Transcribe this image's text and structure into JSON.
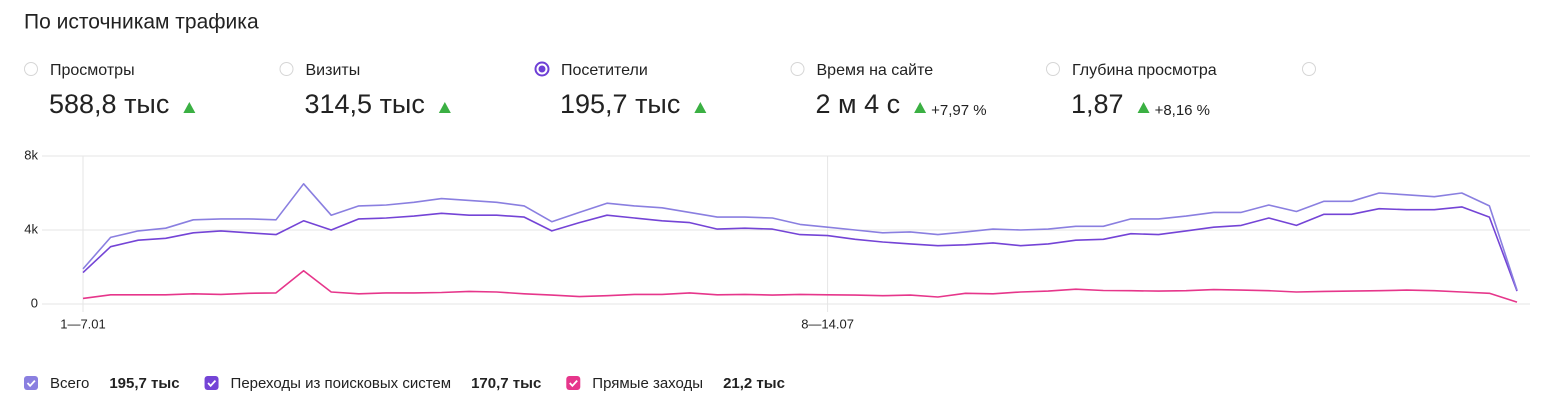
{
  "header": {
    "title": "По источникам трафика"
  },
  "metrics": [
    {
      "label": "Просмотры",
      "value": "588,8 тыс"
    },
    {
      "label": "Визиты",
      "value": "314,5 тыс"
    },
    {
      "label": "Посетители",
      "value": "195,7 тыс"
    },
    {
      "label": "Время на сайте",
      "value": "2 м 4 с",
      "change": "+7,97 %"
    },
    {
      "label": "Глубина просмотра",
      "value": "1,87",
      "change": "+8,16 %"
    }
  ],
  "selected_metric": 2,
  "chart_data": {
    "type": "line",
    "categories": [
      "1—7.01",
      null,
      null,
      null,
      null,
      null,
      null,
      null,
      null,
      null,
      null,
      null,
      null,
      null,
      null,
      null,
      null,
      null,
      null,
      null,
      null,
      null,
      null,
      null,
      null,
      null,
      null,
      "8—14.07",
      null,
      null,
      null,
      null,
      null,
      null,
      null,
      null,
      null,
      null,
      null,
      null,
      null,
      null,
      null,
      null,
      null,
      null,
      null,
      null,
      null,
      null,
      null,
      null,
      null
    ],
    "series": [
      {
        "name": "Всего",
        "total": "195,7 тыс",
        "color": "#8a7fe0",
        "values": [
          1900,
          3600,
          3950,
          4100,
          4550,
          4600,
          4600,
          4550,
          6500,
          4800,
          5300,
          5350,
          5500,
          5700,
          5600,
          5500,
          5300,
          4450,
          4950,
          5450,
          5300,
          5200,
          4950,
          4700,
          4700,
          4650,
          4300,
          4150,
          4000,
          3850,
          3900,
          3750,
          3900,
          4050,
          4000,
          4050,
          4200,
          4200,
          4600,
          4600,
          4750,
          4950,
          4950,
          5350,
          5000,
          5550,
          5550,
          6000,
          5900,
          5800,
          6000,
          5300,
          750
        ]
      },
      {
        "name": "Переходы из поисковых систем",
        "total": "170,7 тыс",
        "color": "#7444d6",
        "values": [
          1700,
          3100,
          3450,
          3550,
          3850,
          3950,
          3850,
          3750,
          4500,
          4000,
          4600,
          4650,
          4750,
          4900,
          4800,
          4800,
          4700,
          3950,
          4400,
          4800,
          4650,
          4500,
          4400,
          4050,
          4100,
          4050,
          3750,
          3700,
          3500,
          3350,
          3250,
          3150,
          3200,
          3300,
          3150,
          3250,
          3450,
          3500,
          3800,
          3750,
          3950,
          4150,
          4250,
          4650,
          4250,
          4850,
          4850,
          5150,
          5100,
          5100,
          5250,
          4700,
          700
        ]
      },
      {
        "name": "Прямые заходы",
        "total": "21,2 тыс",
        "color": "#e6368b",
        "values": [
          300,
          500,
          500,
          500,
          550,
          520,
          580,
          600,
          1800,
          650,
          550,
          600,
          600,
          620,
          680,
          650,
          550,
          480,
          400,
          450,
          520,
          520,
          600,
          500,
          520,
          480,
          520,
          500,
          480,
          450,
          480,
          380,
          580,
          550,
          650,
          700,
          800,
          730,
          720,
          700,
          720,
          780,
          750,
          720,
          650,
          680,
          700,
          720,
          750,
          720,
          650,
          580,
          100
        ]
      }
    ],
    "ylim": [
      0,
      8000
    ],
    "yticks": [
      0,
      {
        "value": 4000,
        "label": "4k"
      },
      {
        "value": 8000,
        "label": "8k"
      }
    ],
    "grid": true
  }
}
